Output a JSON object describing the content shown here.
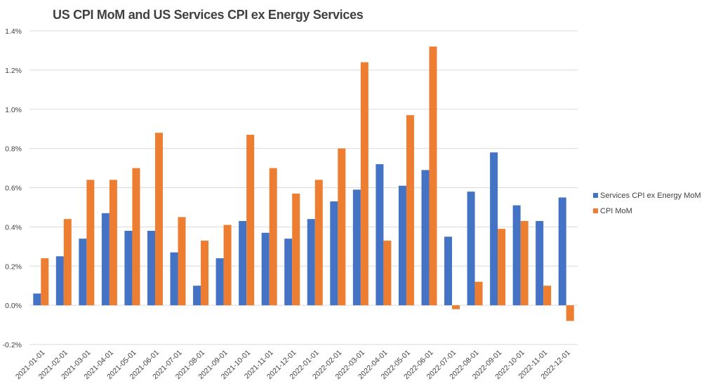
{
  "chart_data": {
    "type": "bar",
    "title": "US CPI MoM and US Services CPI ex Energy Services",
    "xlabel": "",
    "ylabel": "",
    "ylim": [
      -0.2,
      1.4
    ],
    "yticks": [
      -0.2,
      0.0,
      0.2,
      0.4,
      0.6,
      0.8,
      1.0,
      1.2,
      1.4
    ],
    "ytick_labels": [
      "-0.2%",
      "0.0%",
      "0.2%",
      "0.4%",
      "0.6%",
      "0.8%",
      "1.0%",
      "1.2%",
      "1.4%"
    ],
    "grid": true,
    "legend_position": "right",
    "categories": [
      "2021-01-01",
      "2021-02-01",
      "2021-03-01",
      "2021-04-01",
      "2021-05-01",
      "2021-06-01",
      "2021-07-01",
      "2021-08-01",
      "2021-09-01",
      "2021-10-01",
      "2021-11-01",
      "2021-12-01",
      "2022-01-01",
      "2022-02-01",
      "2022-03-01",
      "2022-04-01",
      "2022-05-01",
      "2022-06-01",
      "2022-07-01",
      "2022-08-01",
      "2022-09-01",
      "2022-10-01",
      "2022-11-01",
      "2022-12-01"
    ],
    "series": [
      {
        "name": "Services CPI ex Energy MoM",
        "color": "#4472c4",
        "values": [
          0.06,
          0.25,
          0.34,
          0.47,
          0.38,
          0.38,
          0.27,
          0.1,
          0.24,
          0.43,
          0.37,
          0.34,
          0.44,
          0.53,
          0.59,
          0.72,
          0.61,
          0.69,
          0.35,
          0.58,
          0.78,
          0.51,
          0.43,
          0.55
        ]
      },
      {
        "name": "CPI MoM",
        "color": "#ed7d31",
        "values": [
          0.24,
          0.44,
          0.64,
          0.64,
          0.7,
          0.88,
          0.45,
          0.33,
          0.41,
          0.87,
          0.7,
          0.57,
          0.64,
          0.8,
          1.24,
          0.33,
          0.97,
          1.32,
          -0.02,
          0.12,
          0.39,
          0.43,
          0.1,
          -0.08
        ]
      }
    ]
  }
}
